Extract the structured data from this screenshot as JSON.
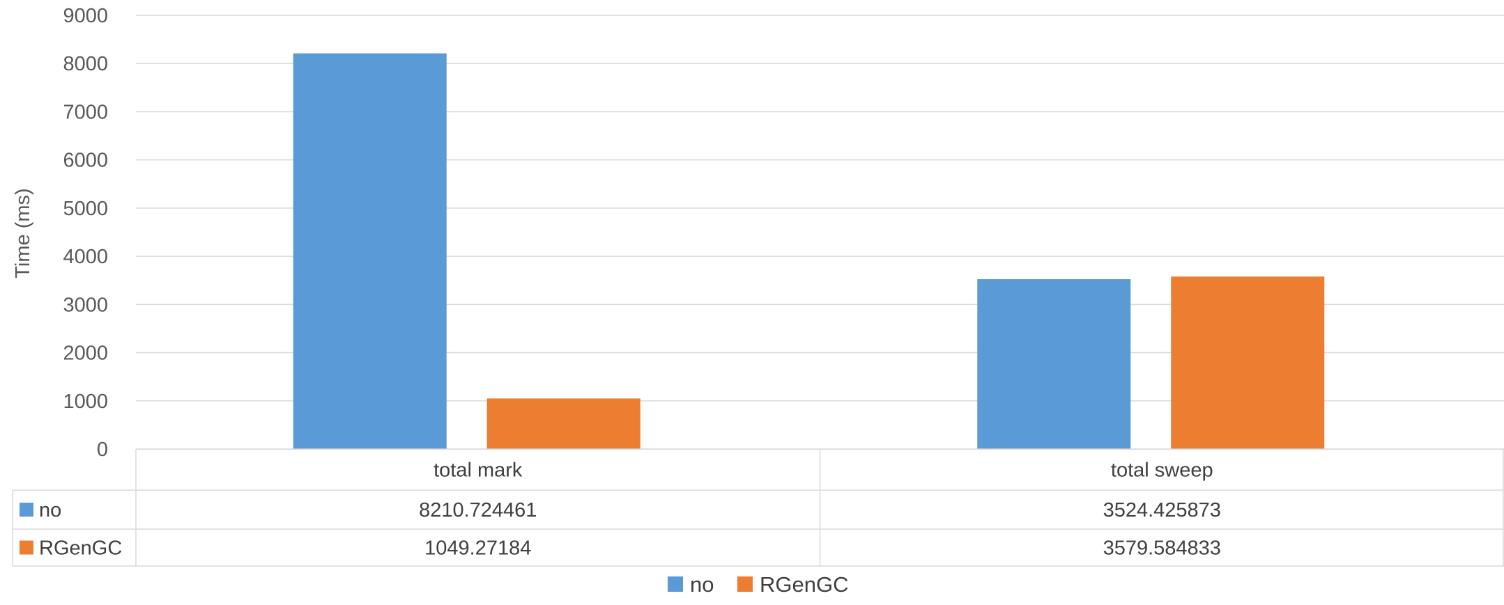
{
  "chart_data": {
    "type": "bar",
    "title": "",
    "xlabel": "",
    "ylabel": "Time (ms)",
    "ylim": [
      0,
      9000
    ],
    "yticks": [
      0,
      1000,
      2000,
      3000,
      4000,
      5000,
      6000,
      7000,
      8000,
      9000
    ],
    "grid": true,
    "legend": "bottom",
    "data_table": true,
    "categories": [
      "total mark",
      "total sweep"
    ],
    "series": [
      {
        "name": "no",
        "color": "#5B9BD5",
        "values": [
          8210.724461,
          3524.425873
        ],
        "labels": [
          "8210.724461",
          "3524.425873"
        ]
      },
      {
        "name": "RGenGC",
        "color": "#ED7D31",
        "values": [
          1049.27184,
          3579.584833
        ],
        "labels": [
          "1049.27184",
          "3579.584833"
        ]
      }
    ]
  }
}
